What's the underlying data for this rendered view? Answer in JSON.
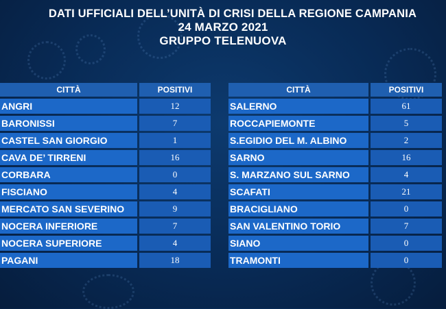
{
  "header": {
    "title": "DATI UFFICIALI DELL’UNITÀ DI CRISI DELLA REGIONE CAMPANIA",
    "date": "24 MARZO 2021",
    "group": "GRUPPO TELENUOVA"
  },
  "columns": {
    "city": "CITTÀ",
    "positive": "POSITIVI"
  },
  "left_table": [
    {
      "city": "ANGRI",
      "positive": "12"
    },
    {
      "city": "BARONISSI",
      "positive": "7"
    },
    {
      "city": "CASTEL SAN GIORGIO",
      "positive": "1"
    },
    {
      "city": "CAVA DE’ TIRRENI",
      "positive": "16"
    },
    {
      "city": "CORBARA",
      "positive": "0"
    },
    {
      "city": "FISCIANO",
      "positive": "4"
    },
    {
      "city": "MERCATO SAN SEVERINO",
      "positive": "9"
    },
    {
      "city": "NOCERA INFERIORE",
      "positive": "7"
    },
    {
      "city": "NOCERA SUPERIORE",
      "positive": "4"
    },
    {
      "city": "PAGANI",
      "positive": "18"
    }
  ],
  "right_table": [
    {
      "city": "SALERNO",
      "positive": "61"
    },
    {
      "city": "ROCCAPIEMONTE",
      "positive": "5"
    },
    {
      "city": "S.EGIDIO DEL M. ALBINO",
      "positive": "2"
    },
    {
      "city": "SARNO",
      "positive": "16"
    },
    {
      "city": "S. MARZANO SUL SARNO",
      "positive": "4"
    },
    {
      "city": "SCAFATI",
      "positive": "21"
    },
    {
      "city": "BRACIGLIANO",
      "positive": "0"
    },
    {
      "city": "SAN VALENTINO TORIO",
      "positive": "7"
    },
    {
      "city": "SIANO",
      "positive": "0"
    },
    {
      "city": "TRAMONTI",
      "positive": "0"
    }
  ]
}
